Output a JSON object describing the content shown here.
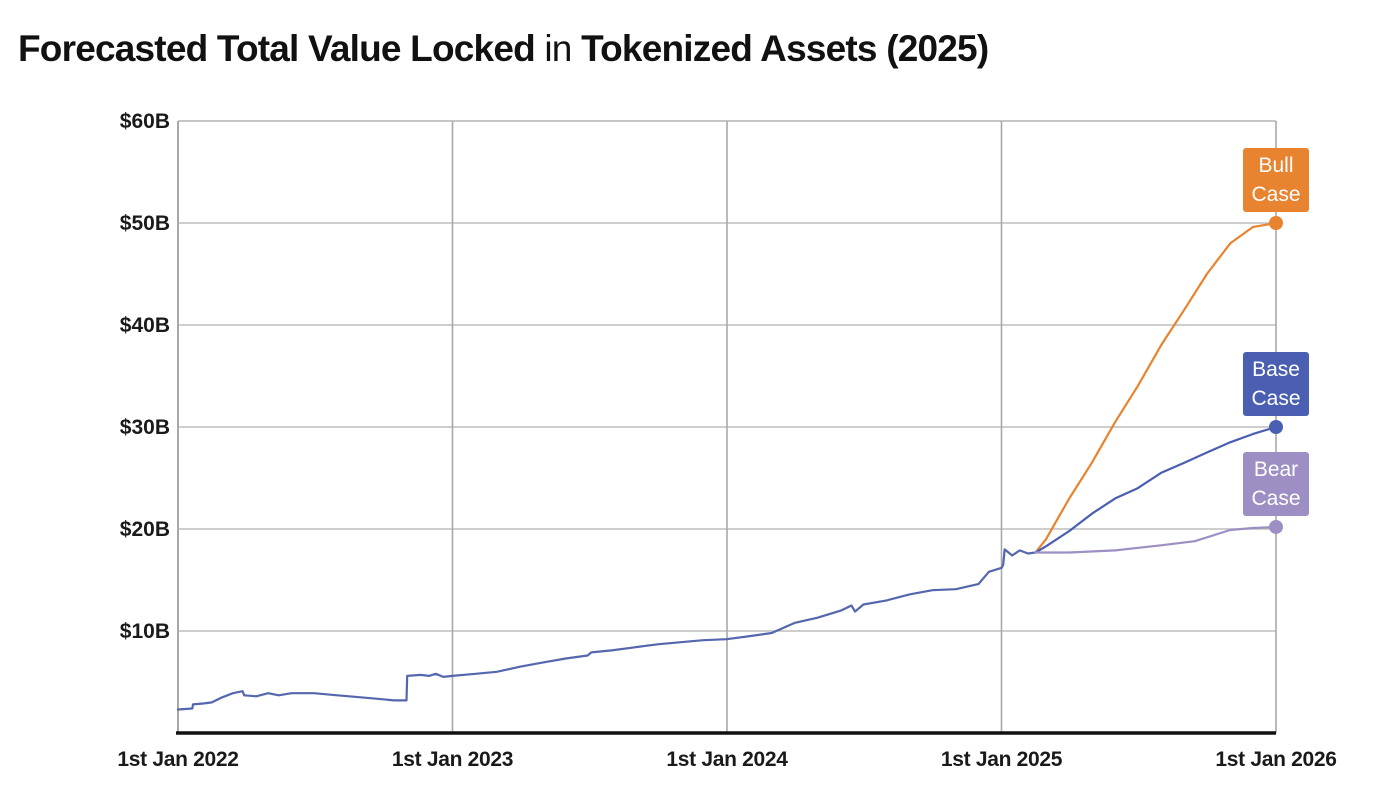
{
  "title": {
    "part1": "Forecasted Total Value Locked",
    "part2": "in",
    "part3": "Tokenized Assets (2025)"
  },
  "chart_data": {
    "type": "line",
    "title": "Forecasted Total Value Locked in Tokenized Assets (2025)",
    "xlabel": "",
    "ylabel": "",
    "x_ticks": [
      "1st Jan 2022",
      "1st Jan 2023",
      "1st Jan 2024",
      "1st Jan 2025",
      "1st Jan 2026"
    ],
    "y_ticks": [
      "$10B",
      "$20B",
      "$30B",
      "$40B",
      "$50B",
      "$60B"
    ],
    "xlim": [
      "2022-01-01",
      "2026-01-01"
    ],
    "ylim": [
      0,
      60
    ],
    "y_unit": "billion USD",
    "grid": true,
    "legend": "none",
    "series": [
      {
        "key": "historical",
        "color": "#5467ad",
        "points": [
          [
            "2022-01-01",
            2.3
          ],
          [
            "2022-01-20",
            2.4
          ],
          [
            "2022-01-21",
            2.8
          ],
          [
            "2022-02-05",
            2.9
          ],
          [
            "2022-02-15",
            3.0
          ],
          [
            "2022-03-01",
            3.5
          ],
          [
            "2022-03-15",
            3.9
          ],
          [
            "2022-03-28",
            4.1
          ],
          [
            "2022-03-30",
            3.7
          ],
          [
            "2022-04-15",
            3.6
          ],
          [
            "2022-05-01",
            3.9
          ],
          [
            "2022-05-15",
            3.7
          ],
          [
            "2022-06-01",
            3.9
          ],
          [
            "2022-07-01",
            3.9
          ],
          [
            "2022-08-01",
            3.7
          ],
          [
            "2022-09-01",
            3.5
          ],
          [
            "2022-10-01",
            3.3
          ],
          [
            "2022-10-15",
            3.2
          ],
          [
            "2022-11-01",
            3.2
          ],
          [
            "2022-11-02",
            5.6
          ],
          [
            "2022-11-20",
            5.7
          ],
          [
            "2022-12-01",
            5.6
          ],
          [
            "2022-12-10",
            5.8
          ],
          [
            "2022-12-20",
            5.5
          ],
          [
            "2023-01-01",
            5.6
          ],
          [
            "2023-02-01",
            5.8
          ],
          [
            "2023-03-01",
            6.0
          ],
          [
            "2023-04-01",
            6.5
          ],
          [
            "2023-05-01",
            6.9
          ],
          [
            "2023-06-01",
            7.3
          ],
          [
            "2023-06-30",
            7.6
          ],
          [
            "2023-07-05",
            7.9
          ],
          [
            "2023-08-01",
            8.1
          ],
          [
            "2023-09-01",
            8.4
          ],
          [
            "2023-10-01",
            8.7
          ],
          [
            "2023-11-01",
            8.9
          ],
          [
            "2023-12-01",
            9.1
          ],
          [
            "2024-01-01",
            9.2
          ],
          [
            "2024-02-01",
            9.5
          ],
          [
            "2024-03-01",
            9.8
          ],
          [
            "2024-04-01",
            10.8
          ],
          [
            "2024-05-01",
            11.3
          ],
          [
            "2024-06-01",
            12.0
          ],
          [
            "2024-06-15",
            12.5
          ],
          [
            "2024-06-20",
            11.9
          ],
          [
            "2024-07-01",
            12.6
          ],
          [
            "2024-08-01",
            13.0
          ],
          [
            "2024-09-01",
            13.6
          ],
          [
            "2024-10-01",
            14.0
          ],
          [
            "2024-11-01",
            14.1
          ],
          [
            "2024-12-01",
            14.6
          ],
          [
            "2024-12-15",
            15.8
          ],
          [
            "2025-01-01",
            16.2
          ],
          [
            "2025-01-03",
            16.5
          ],
          [
            "2025-01-05",
            18.0
          ],
          [
            "2025-01-15",
            17.4
          ],
          [
            "2025-01-25",
            17.9
          ],
          [
            "2025-02-05",
            17.6
          ],
          [
            "2025-02-15",
            17.7
          ]
        ]
      },
      {
        "key": "bull",
        "color": "#e8832f",
        "label": [
          "Bull",
          "Case"
        ],
        "points": [
          [
            "2025-02-15",
            17.7
          ],
          [
            "2025-03-01",
            19.0
          ],
          [
            "2025-04-01",
            23.0
          ],
          [
            "2025-05-01",
            26.5
          ],
          [
            "2025-06-01",
            30.5
          ],
          [
            "2025-07-01",
            34.0
          ],
          [
            "2025-08-01",
            38.0
          ],
          [
            "2025-09-01",
            41.5
          ],
          [
            "2025-10-01",
            45.0
          ],
          [
            "2025-11-01",
            48.0
          ],
          [
            "2025-12-01",
            49.6
          ],
          [
            "2026-01-01",
            50.0
          ]
        ]
      },
      {
        "key": "base",
        "color": "#4a5fb2",
        "label": [
          "Base",
          "Case"
        ],
        "points": [
          [
            "2025-02-15",
            17.7
          ],
          [
            "2025-03-01",
            18.3
          ],
          [
            "2025-04-01",
            19.8
          ],
          [
            "2025-05-01",
            21.5
          ],
          [
            "2025-06-01",
            23.0
          ],
          [
            "2025-07-01",
            24.0
          ],
          [
            "2025-08-01",
            25.5
          ],
          [
            "2025-09-01",
            26.5
          ],
          [
            "2025-10-01",
            27.5
          ],
          [
            "2025-11-01",
            28.5
          ],
          [
            "2025-12-01",
            29.3
          ],
          [
            "2026-01-01",
            30.0
          ]
        ]
      },
      {
        "key": "bear",
        "color": "#9d8fc4",
        "label": [
          "Bear",
          "Case"
        ],
        "points": [
          [
            "2025-02-15",
            17.7
          ],
          [
            "2025-04-01",
            17.7
          ],
          [
            "2025-06-01",
            17.9
          ],
          [
            "2025-08-01",
            18.4
          ],
          [
            "2025-09-15",
            18.8
          ],
          [
            "2025-11-01",
            19.9
          ],
          [
            "2025-12-01",
            20.1
          ],
          [
            "2026-01-01",
            20.2
          ]
        ]
      }
    ]
  }
}
